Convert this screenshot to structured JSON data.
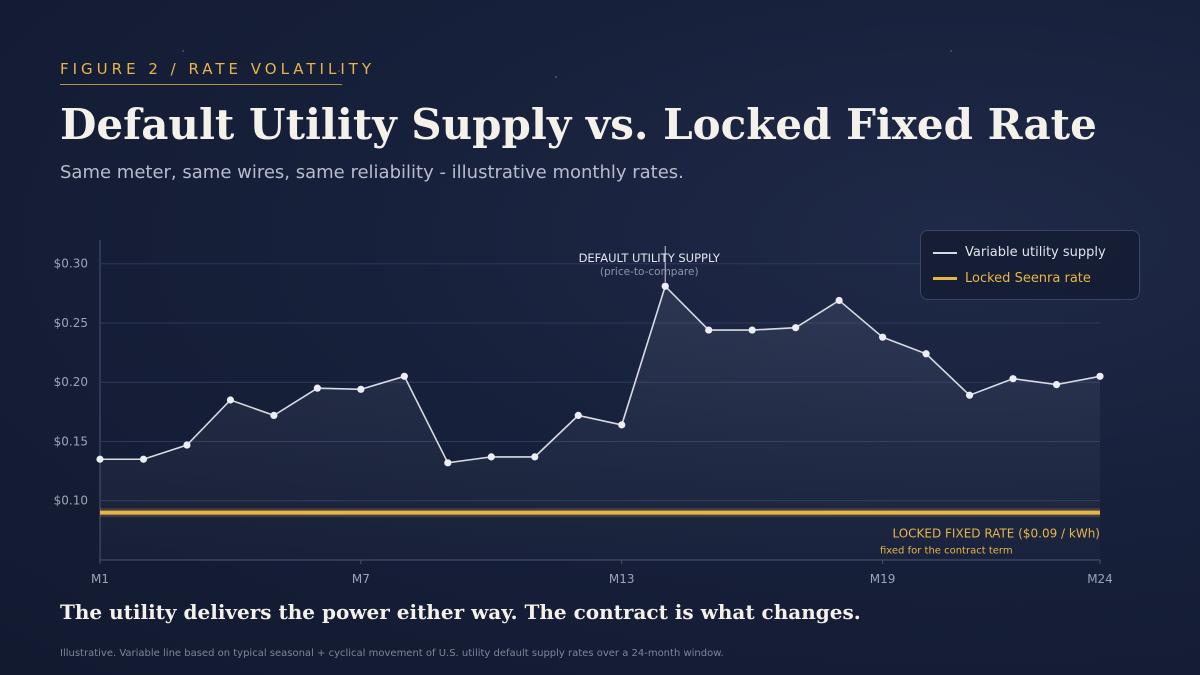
{
  "eyebrow": "FIGURE 2 / RATE VOLATILITY",
  "title": "Default Utility Supply  vs.  Locked Fixed Rate",
  "subtitle": "Same meter, same wires, same reliability  -  illustrative monthly rates.",
  "tagline": "The utility delivers the power either way.  The contract is what changes.",
  "footnote": "Illustrative.  Variable line based on typical seasonal + cyclical movement of U.S. utility default supply rates over a 24-month window.",
  "legend": {
    "variable_label": "Variable utility supply",
    "locked_label": "Locked Seenra rate"
  },
  "colors": {
    "accent": "#e8b54a",
    "variable_line": "#d9dbe4",
    "locked_line": "#e8b54a"
  },
  "chart_data": {
    "type": "line",
    "x": [
      "M1",
      "M2",
      "M3",
      "M4",
      "M5",
      "M6",
      "M7",
      "M8",
      "M9",
      "M10",
      "M11",
      "M12",
      "M13",
      "M14",
      "M15",
      "M16",
      "M17",
      "M18",
      "M19",
      "M20",
      "M21",
      "M22",
      "M23",
      "M24"
    ],
    "x_tick_labels": [
      "M1",
      "M7",
      "M13",
      "M19",
      "M24"
    ],
    "y_tick_labels": [
      "$0.30",
      "$0.25",
      "$0.20",
      "$0.15",
      "$0.10"
    ],
    "y_ticks": [
      0.3,
      0.25,
      0.2,
      0.15,
      0.1
    ],
    "ylim": [
      0.05,
      0.32
    ],
    "grid": true,
    "legend_position": "top-right",
    "series": [
      {
        "name": "Variable utility supply",
        "values": [
          0.135,
          0.135,
          0.147,
          0.185,
          0.172,
          0.195,
          0.194,
          0.205,
          0.132,
          0.137,
          0.137,
          0.172,
          0.164,
          0.281,
          0.244,
          0.244,
          0.246,
          0.269,
          0.238,
          0.224,
          0.189,
          0.203,
          0.198,
          0.205
        ]
      },
      {
        "name": "Locked Seenra rate",
        "values": [
          0.09,
          0.09,
          0.09,
          0.09,
          0.09,
          0.09,
          0.09,
          0.09,
          0.09,
          0.09,
          0.09,
          0.09,
          0.09,
          0.09,
          0.09,
          0.09,
          0.09,
          0.09,
          0.09,
          0.09,
          0.09,
          0.09,
          0.09,
          0.09
        ]
      }
    ],
    "annotations": {
      "peak_title": "DEFAULT UTILITY SUPPLY",
      "peak_subtitle": "(price-to-compare)",
      "fixed_title": "LOCKED FIXED RATE  ($0.09 / kWh)",
      "fixed_subtitle": "fixed for the contract term"
    }
  }
}
